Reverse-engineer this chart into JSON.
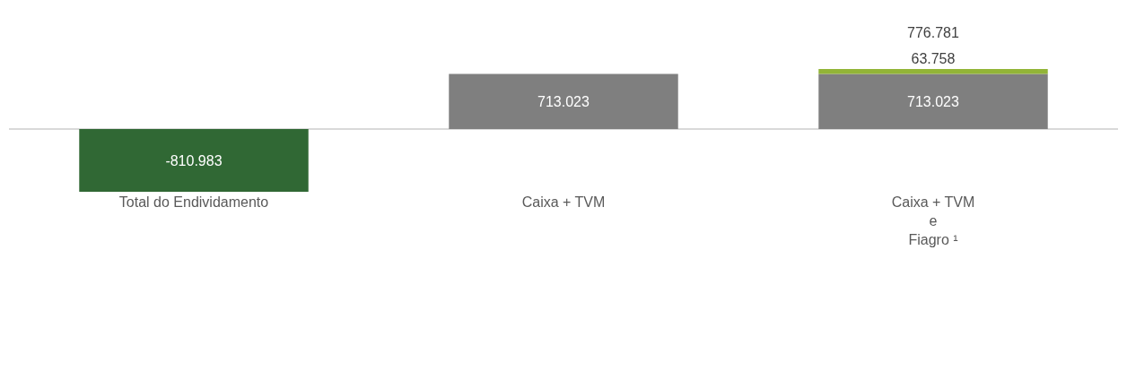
{
  "chart_data": {
    "type": "bar",
    "stacked": true,
    "grid": false,
    "categories": [
      "Total do Endividamento",
      "Caixa + TVM",
      "Caixa + TVM\ne\nFiagro ¹"
    ],
    "series": [
      {
        "colors": [
          "#306834",
          "#7f7f7f",
          "#7f7f7f"
        ],
        "values": [
          -810983,
          713023,
          713023
        ],
        "value_labels": [
          "-810.983",
          "713.023",
          "713.023"
        ]
      },
      {
        "color": "#92b437",
        "values": [
          null,
          null,
          63758
        ],
        "value_labels": [
          null,
          null,
          "63.758"
        ]
      }
    ],
    "totals": [
      null,
      null,
      "776.781"
    ]
  }
}
